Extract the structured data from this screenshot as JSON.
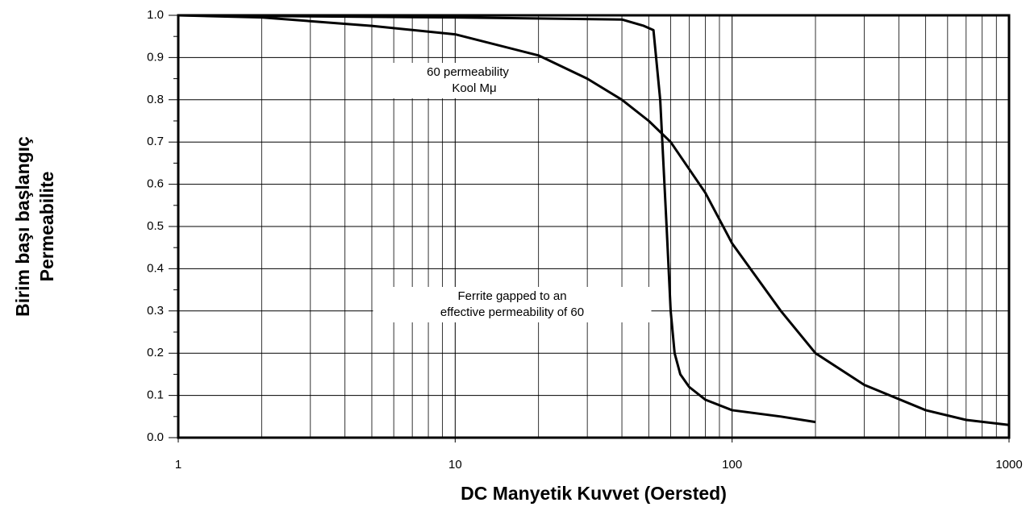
{
  "chart_data": {
    "type": "line",
    "xlabel": "DC Manyetik Kuvvet  (Oersted)",
    "ylabel": [
      "Birim başı başlangıç",
      "Permeabilite"
    ],
    "xscale": "log",
    "xlim": [
      1,
      1000
    ],
    "ylim": [
      0,
      1
    ],
    "xticks": [
      1,
      10,
      100,
      1000
    ],
    "xminorticks": [
      2,
      3,
      4,
      5,
      6,
      7,
      8,
      9,
      20,
      30,
      40,
      50,
      60,
      70,
      80,
      90,
      200,
      300,
      400,
      500,
      600,
      700,
      800,
      900
    ],
    "yticks": [
      {
        "value": 0,
        "label": "0.0"
      },
      0.1,
      0.2,
      0.3,
      0.4,
      0.5,
      0.6,
      0.7,
      0.8,
      0.9,
      {
        "value": 1,
        "label": "1.0"
      }
    ],
    "yminorticks": [
      0.05,
      0.15,
      0.25,
      0.35,
      0.45,
      0.55,
      0.65,
      0.75,
      0.85,
      0.95
    ],
    "grid": true,
    "annotations": [
      {
        "lines": [
          "60 permeability",
          "Kool Mμ"
        ]
      },
      {
        "lines": [
          "Ferrite gapped to an",
          "effective permeability of 60"
        ]
      }
    ],
    "series": [
      {
        "color": "#000000",
        "x": [
          1,
          2,
          5,
          10,
          20,
          30,
          40,
          50,
          60,
          80,
          100,
          150,
          200,
          300,
          500,
          700,
          1000
        ],
        "values": [
          1.0,
          0.995,
          0.975,
          0.955,
          0.905,
          0.85,
          0.8,
          0.75,
          0.7,
          0.58,
          0.46,
          0.3,
          0.2,
          0.125,
          0.065,
          0.042,
          0.03
        ]
      },
      {
        "color": "#000000",
        "x": [
          1,
          10,
          40,
          48,
          52,
          55,
          58,
          60,
          62,
          65,
          70,
          80,
          100,
          150,
          200
        ],
        "values": [
          1.0,
          0.995,
          0.99,
          0.975,
          0.965,
          0.8,
          0.5,
          0.3,
          0.2,
          0.15,
          0.12,
          0.09,
          0.065,
          0.05,
          0.037
        ]
      }
    ]
  }
}
